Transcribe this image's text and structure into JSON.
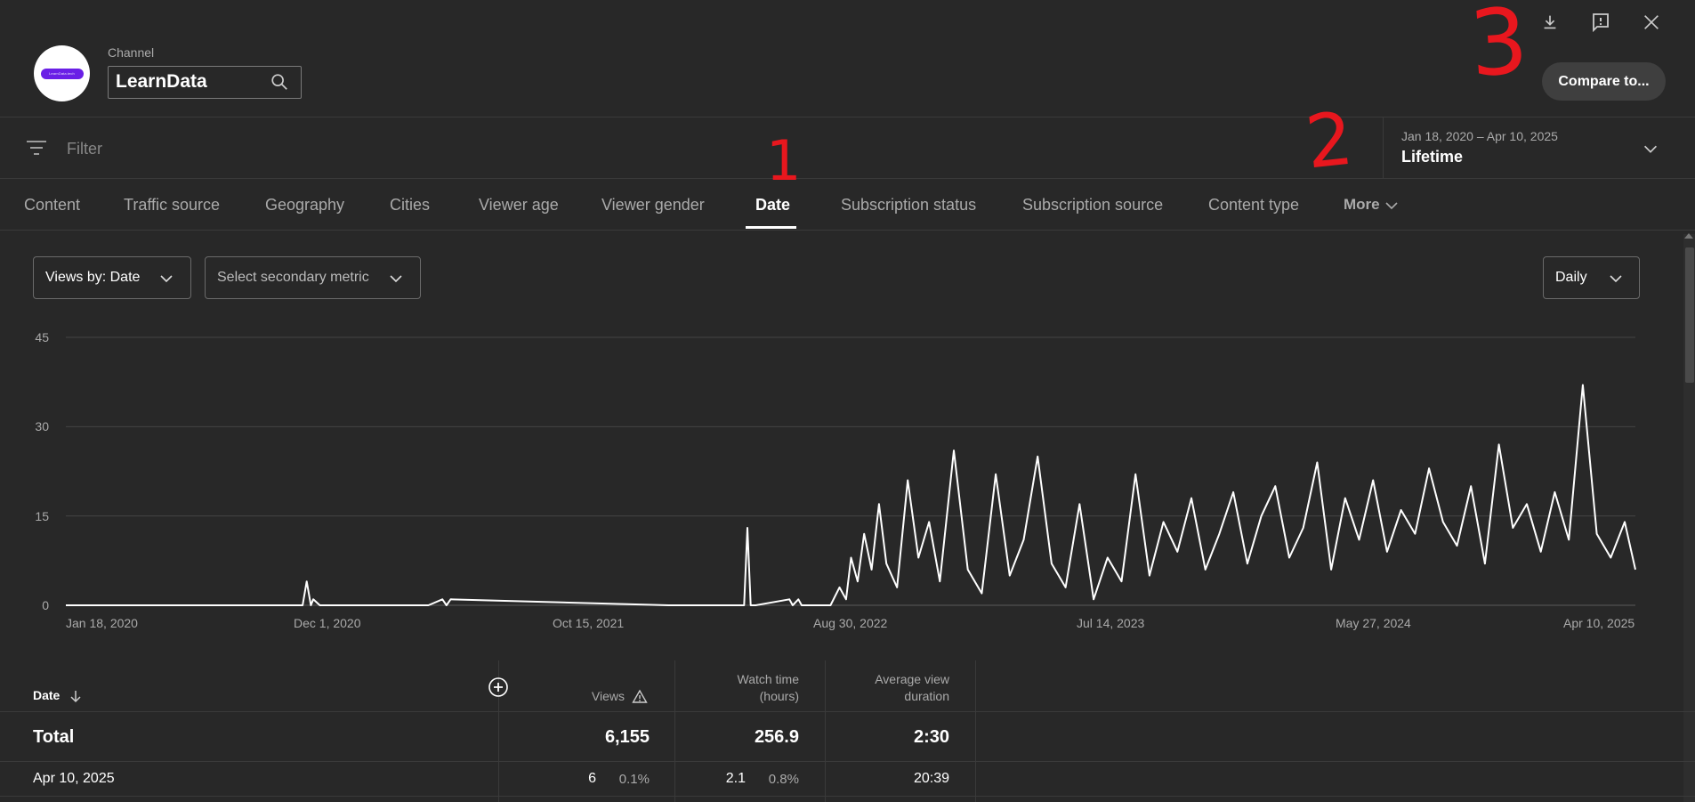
{
  "header": {
    "channel_label": "Channel",
    "channel_name": "LearnData",
    "logo_text": "LearnData.tech",
    "compare_button": "Compare to..."
  },
  "filter": {
    "placeholder": "Filter",
    "date_range": "Jan 18, 2020 – Apr 10, 2025",
    "period": "Lifetime"
  },
  "tabs": [
    "Content",
    "Traffic source",
    "Geography",
    "Cities",
    "Viewer age",
    "Viewer gender",
    "Date",
    "Subscription status",
    "Subscription source",
    "Content type",
    "More"
  ],
  "active_tab": "Date",
  "controls": {
    "primary_metric": "Views by: Date",
    "secondary_metric": "Select secondary metric",
    "granularity": "Daily"
  },
  "chart_data": {
    "type": "line",
    "title": "",
    "xlabel": "",
    "ylabel": "",
    "x_start": "Jan 18, 2020",
    "x_end": "Apr 10, 2025",
    "x_tick_labels": [
      "Jan 18, 2020",
      "Dec 1, 2020",
      "Oct 15, 2021",
      "Aug 30, 2022",
      "Jul 14, 2023",
      "May 27, 2024",
      "Apr 10, 2025"
    ],
    "y_ticks": [
      0,
      15,
      30,
      45
    ],
    "ylim": [
      0,
      45
    ],
    "grid": true,
    "series": [
      {
        "x": [
          "Jan 18, 2020",
          "Nov 1, 2020",
          "Nov 6, 2020",
          "Nov 11, 2020",
          "Nov 14, 2020",
          "Nov 22, 2020",
          "Jan 18, 2021",
          "Apr 3, 2021",
          "Apr 20, 2021",
          "Apr 25, 2021",
          "Apr 30, 2021",
          "Jan 20, 2022",
          "Apr 22, 2022",
          "Apr 26, 2022",
          "Apr 30, 2022",
          "May 6, 2022",
          "Jun 16, 2022",
          "Jun 20, 2022",
          "Jun 27, 2022",
          "Jul 1, 2022",
          "Jul 10, 2022",
          "Aug 5, 2022",
          "Aug 16, 2022",
          "Aug 24, 2022",
          "Aug 30, 2022",
          "Sep 7, 2022",
          "Sep 15, 2022",
          "Sep 24, 2022",
          "Oct 3, 2022",
          "Oct 12, 2022",
          "Oct 25, 2022",
          "Nov 7, 2022",
          "Nov 20, 2022",
          "Dec 3, 2022",
          "Dec 16, 2022",
          "Jan 2, 2023",
          "Jan 19, 2023",
          "Feb 5, 2023",
          "Feb 22, 2023",
          "Mar 11, 2023",
          "Mar 28, 2023",
          "Apr 14, 2023",
          "May 1, 2023",
          "May 18, 2023",
          "Jun 4, 2023",
          "Jun 21, 2023",
          "Jul 8, 2023",
          "Jul 25, 2023",
          "Aug 11, 2023",
          "Aug 28, 2023",
          "Sep 14, 2023",
          "Oct 1, 2023",
          "Oct 18, 2023",
          "Nov 4, 2023",
          "Nov 21, 2023",
          "Dec 8, 2023",
          "Dec 25, 2023",
          "Jan 11, 2024",
          "Jan 28, 2024",
          "Feb 14, 2024",
          "Mar 2, 2024",
          "Mar 19, 2024",
          "Apr 5, 2024",
          "Apr 22, 2024",
          "May 9, 2024",
          "May 26, 2024",
          "Jun 12, 2024",
          "Jun 29, 2024",
          "Jul 16, 2024",
          "Aug 2, 2024",
          "Aug 19, 2024",
          "Sep 5, 2024",
          "Sep 22, 2024",
          "Oct 9, 2024",
          "Oct 26, 2024",
          "Nov 12, 2024",
          "Nov 29, 2024",
          "Dec 16, 2024",
          "Jan 2, 2025",
          "Jan 19, 2025",
          "Feb 5, 2025",
          "Feb 22, 2025",
          "Mar 11, 2025",
          "Mar 28, 2025",
          "Apr 10, 2025"
        ],
        "y": [
          0,
          0,
          4,
          0,
          1,
          0,
          0,
          0,
          1,
          0,
          1,
          0,
          0,
          13,
          0,
          0,
          1,
          0,
          1,
          0,
          0,
          0,
          3,
          1,
          8,
          4,
          12,
          6,
          17,
          7,
          3,
          21,
          8,
          14,
          4,
          26,
          6,
          2,
          22,
          5,
          11,
          25,
          7,
          3,
          17,
          1,
          8,
          4,
          22,
          5,
          14,
          9,
          18,
          6,
          12,
          19,
          7,
          15,
          20,
          8,
          13,
          24,
          6,
          18,
          11,
          21,
          9,
          16,
          12,
          23,
          14,
          10,
          20,
          7,
          27,
          13,
          17,
          9,
          19,
          11,
          37,
          12,
          8,
          14,
          6
        ]
      }
    ]
  },
  "table": {
    "headers": {
      "date": "Date",
      "views": "Views",
      "watch_time_1": "Watch time",
      "watch_time_2": "(hours)",
      "avg_view_1": "Average view",
      "avg_view_2": "duration"
    },
    "total": {
      "label": "Total",
      "views": "6,155",
      "watch_time": "256.9",
      "avg_view_duration": "2:30"
    },
    "rows": [
      {
        "date": "Apr 10, 2025",
        "views": "6",
        "views_pct": "0.1%",
        "watch_time": "2.1",
        "watch_time_pct": "0.8%",
        "avg_view_duration": "20:39"
      }
    ]
  },
  "annotations": [
    "1",
    "2",
    "3"
  ],
  "colors": {
    "background": "#282828",
    "annotation": "#e8171e",
    "line": "#ffffff"
  }
}
